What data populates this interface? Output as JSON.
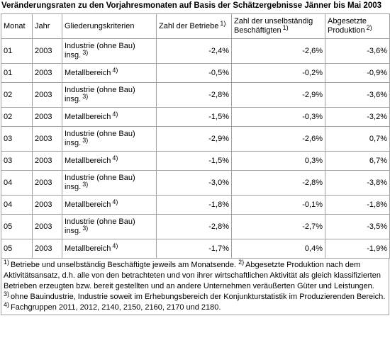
{
  "title": "Veränderungsraten zu den Vorjahresmonaten auf Basis der Schätzergebnisse Jänner bis Mai 2003",
  "table": {
    "headers": [
      {
        "text": "Monat"
      },
      {
        "text": "Jahr"
      },
      {
        "text": "Gliederungskriterien"
      },
      {
        "text": "Zahl der Betriebe",
        "note": "1)"
      },
      {
        "text": "Zahl der unselbständig Beschäftigten",
        "note": "1)"
      },
      {
        "text": "Abgesetzte Produktion",
        "note": "2)"
      }
    ],
    "rows": [
      {
        "month": "01",
        "year": "2003",
        "criterion": "Industrie (ohne Bau) insg.",
        "note": "3)",
        "betriebe": "-2,4%",
        "beschaeftigte": "-2,6%",
        "produktion": "-3,6%"
      },
      {
        "month": "01",
        "year": "2003",
        "criterion": "Metallbereich",
        "note": "4)",
        "betriebe": "-0,5%",
        "beschaeftigte": "-0,2%",
        "produktion": "-0,9%"
      },
      {
        "month": "02",
        "year": "2003",
        "criterion": "Industrie (ohne Bau) insg.",
        "note": "3)",
        "betriebe": "-2,8%",
        "beschaeftigte": "-2,9%",
        "produktion": "-3,6%"
      },
      {
        "month": "02",
        "year": "2003",
        "criterion": "Metallbereich",
        "note": "4)",
        "betriebe": "-1,5%",
        "beschaeftigte": "-0,3%",
        "produktion": "-3,2%"
      },
      {
        "month": "03",
        "year": "2003",
        "criterion": "Industrie (ohne Bau) insg.",
        "note": "3)",
        "betriebe": "-2,9%",
        "beschaeftigte": "-2,6%",
        "produktion": "0,7%"
      },
      {
        "month": "03",
        "year": "2003",
        "criterion": "Metallbereich",
        "note": "4)",
        "betriebe": "-1,5%",
        "beschaeftigte": "0,3%",
        "produktion": "6,7%"
      },
      {
        "month": "04",
        "year": "2003",
        "criterion": "Industrie (ohne Bau) insg.",
        "note": "3)",
        "betriebe": "-3,0%",
        "beschaeftigte": "-2,8%",
        "produktion": "-3,8%"
      },
      {
        "month": "04",
        "year": "2003",
        "criterion": "Metallbereich",
        "note": "4)",
        "betriebe": "-1,8%",
        "beschaeftigte": "-0,1%",
        "produktion": "-1,8%"
      },
      {
        "month": "05",
        "year": "2003",
        "criterion": "Industrie (ohne Bau) insg.",
        "note": "3)",
        "betriebe": "-2,8%",
        "beschaeftigte": "-2,7%",
        "produktion": "-3,5%"
      },
      {
        "month": "05",
        "year": "2003",
        "criterion": "Metallbereich",
        "note": "4)",
        "betriebe": "-1,7%",
        "beschaeftigte": "0,4%",
        "produktion": "-1,9%"
      }
    ]
  },
  "footnotes": [
    {
      "note": "1)",
      "text": "Betriebe und unselbständig Beschäftigte jeweils am Monatsende."
    },
    {
      "note": "2)",
      "text": "Abgesetzte Produktion nach dem Aktivitätsansatz, d.h. alle von den betrachteten und von ihrer wirtschaftlichen Aktivität als gleich klassifizierten Betrieben erzeugten bzw. bereit gestellten und an andere Unternehmen veräußerten Güter und Leistungen."
    },
    {
      "note": "3)",
      "text": "ohne Bauindustrie, Industrie soweit im Erhebungsbereich der Konjunkturstatistik im Produzierenden Bereich."
    },
    {
      "note": "4)",
      "text": "Fachgruppen 2011, 2012, 2140, 2150, 2160, 2170 und 2180."
    }
  ]
}
